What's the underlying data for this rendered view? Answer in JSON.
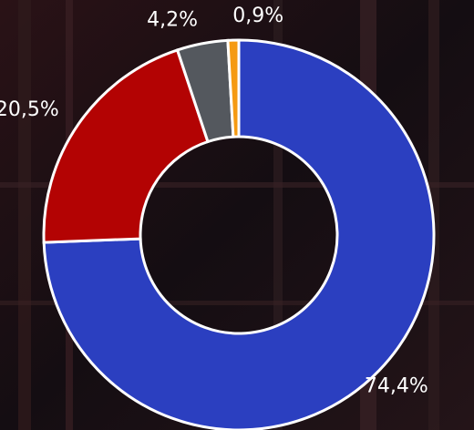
{
  "chart_data": {
    "type": "donut",
    "values": [
      74.4,
      20.5,
      4.2,
      0.9
    ],
    "value_labels": [
      "74,4%",
      "20,5%",
      "4,2%",
      "0,9%"
    ],
    "colors": [
      "#2b3fc0",
      "#b30303",
      "#54585e",
      "#f59a12"
    ]
  }
}
